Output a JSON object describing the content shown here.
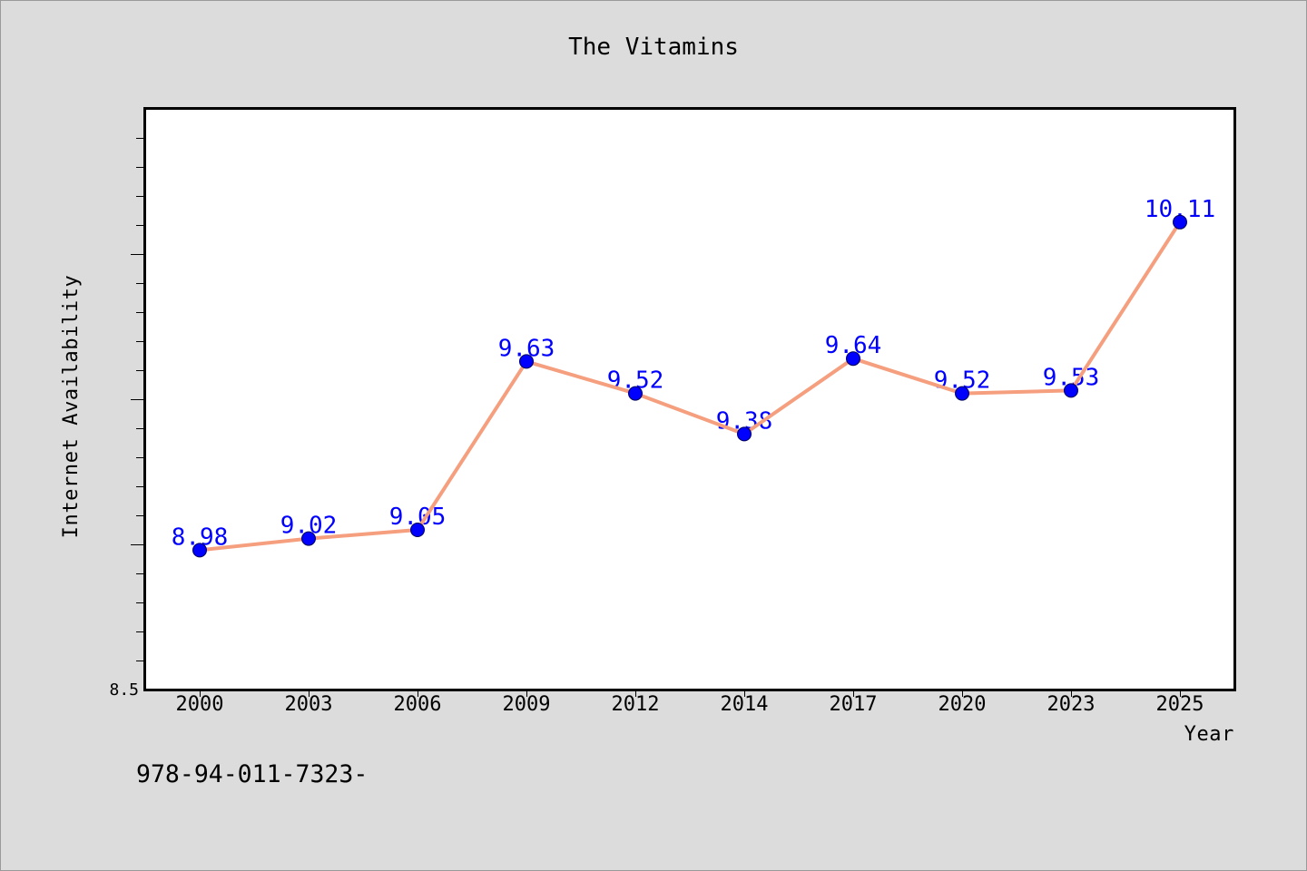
{
  "chart_data": {
    "type": "line",
    "title": "The Vitamins",
    "xlabel": "Year",
    "ylabel": "Internet Availability",
    "categories": [
      "2000",
      "2003",
      "2006",
      "2009",
      "2012",
      "2014",
      "2017",
      "2020",
      "2023",
      "2025"
    ],
    "series": [
      {
        "values": [
          8.98,
          9.02,
          9.05,
          9.63,
          9.52,
          9.38,
          9.64,
          9.52,
          9.53,
          10.11
        ],
        "line_color": "#f59f7f",
        "marker_color": "#0000ff",
        "data_label_color": "#0000ff"
      }
    ],
    "ylim": [
      8.5,
      10.5
    ],
    "y_major_step": 0.5,
    "y_minor_step": 0.1,
    "y_tick_labels": [
      {
        "value": 8.5,
        "text": "8.5"
      }
    ],
    "data_labels": true,
    "grid": false,
    "legend": false
  },
  "footer": {
    "text": "978-94-011-7323-"
  },
  "colors": {
    "background": "#dcdcdc",
    "plot_background": "#ffffff",
    "frame": "#000000"
  }
}
